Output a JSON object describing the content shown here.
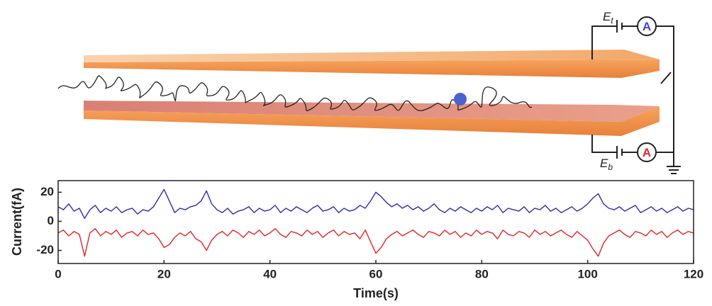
{
  "circuit": {
    "top_source": {
      "symbol": "E",
      "subscript": "t"
    },
    "bottom_source": {
      "symbol": "E",
      "subscript": "b"
    },
    "top_meter": "A",
    "bottom_meter": "A"
  },
  "chart_data": {
    "type": "line",
    "xlabel": "Time(s)",
    "ylabel": "Current(fA)",
    "xlim": [
      0,
      120
    ],
    "xticks": [
      0,
      20,
      40,
      60,
      80,
      100,
      120
    ],
    "ylim": [
      -29,
      28
    ],
    "yticks": [
      20,
      0,
      -20
    ],
    "x": [
      0,
      1,
      2,
      3,
      4,
      5,
      6,
      7,
      8,
      9,
      10,
      11,
      12,
      13,
      14,
      15,
      16,
      17,
      18,
      19,
      20,
      21,
      22,
      23,
      24,
      25,
      26,
      27,
      28,
      29,
      30,
      31,
      32,
      33,
      34,
      35,
      36,
      37,
      38,
      39,
      40,
      41,
      42,
      43,
      44,
      45,
      46,
      47,
      48,
      49,
      50,
      51,
      52,
      53,
      54,
      55,
      56,
      57,
      58,
      59,
      60,
      61,
      62,
      63,
      64,
      65,
      66,
      67,
      68,
      69,
      70,
      71,
      72,
      73,
      74,
      75,
      76,
      77,
      78,
      79,
      80,
      81,
      82,
      83,
      84,
      85,
      86,
      87,
      88,
      89,
      90,
      91,
      92,
      93,
      94,
      95,
      96,
      97,
      98,
      99,
      100,
      101,
      102,
      103,
      104,
      105,
      106,
      107,
      108,
      109,
      110,
      111,
      112,
      113,
      114,
      115,
      116,
      117,
      118,
      119,
      120
    ],
    "series": [
      {
        "color": "#2b2fa8",
        "values": [
          10,
          8,
          12,
          7,
          9,
          2,
          8,
          11,
          6,
          9,
          7,
          10,
          6,
          8,
          9,
          5,
          8,
          7,
          10,
          16,
          22,
          14,
          6,
          9,
          8,
          10,
          11,
          14,
          21,
          12,
          8,
          6,
          9,
          5,
          7,
          8,
          10,
          6,
          9,
          7,
          8,
          11,
          6,
          9,
          7,
          10,
          8,
          6,
          9,
          11,
          7,
          8,
          10,
          6,
          9,
          7,
          8,
          11,
          9,
          14,
          20,
          17,
          13,
          10,
          12,
          9,
          11,
          8,
          10,
          7,
          9,
          12,
          8,
          6,
          9,
          7,
          10,
          8,
          6,
          9,
          7,
          10,
          8,
          11,
          6,
          9,
          8,
          7,
          10,
          6,
          9,
          8,
          11,
          7,
          9,
          6,
          8,
          10,
          7,
          9,
          12,
          16,
          19,
          12,
          9,
          8,
          10,
          7,
          9,
          11,
          6,
          8,
          10,
          7,
          9,
          6,
          8,
          10,
          7,
          9,
          8
        ]
      },
      {
        "color": "#e0262b",
        "values": [
          -8,
          -6,
          -10,
          -7,
          -9,
          -24,
          -8,
          -5,
          -10,
          -7,
          -9,
          -6,
          -11,
          -8,
          -7,
          -10,
          -6,
          -9,
          -8,
          -12,
          -18,
          -16,
          -11,
          -8,
          -10,
          -7,
          -12,
          -14,
          -20,
          -13,
          -9,
          -7,
          -10,
          -6,
          -8,
          -11,
          -7,
          -9,
          -6,
          -10,
          -8,
          -5,
          -9,
          -11,
          -7,
          -8,
          -10,
          -6,
          -9,
          -7,
          -11,
          -8,
          -6,
          -10,
          -7,
          -9,
          -8,
          -12,
          -6,
          -14,
          -22,
          -18,
          -12,
          -9,
          -7,
          -10,
          -8,
          -6,
          -9,
          -11,
          -7,
          -8,
          -10,
          -6,
          -9,
          -7,
          -11,
          -8,
          -10,
          -6,
          -9,
          -7,
          -8,
          -12,
          -6,
          -9,
          -10,
          -7,
          -8,
          -11,
          -6,
          -9,
          -7,
          -10,
          -8,
          -6,
          -9,
          -11,
          -7,
          -10,
          -13,
          -19,
          -24,
          -15,
          -10,
          -8,
          -6,
          -9,
          -11,
          -7,
          -8,
          -10,
          -6,
          -9,
          -7,
          -11,
          -8,
          -6,
          -9,
          -7,
          -8
        ]
      }
    ]
  }
}
